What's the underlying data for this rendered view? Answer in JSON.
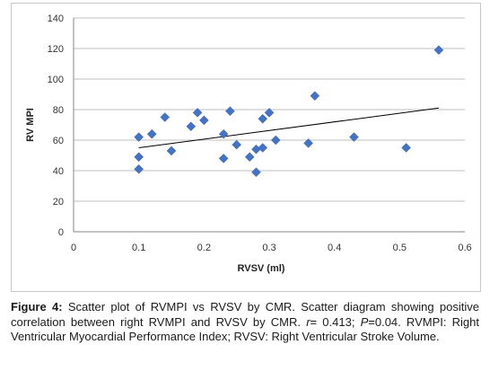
{
  "chart_data": {
    "type": "scatter",
    "title": "",
    "xlabel": "RVSV (ml)",
    "ylabel": "RV MPI",
    "xlim": [
      0,
      0.6
    ],
    "ylim": [
      0,
      140
    ],
    "x_ticks": [
      "0",
      "0.1",
      "0.2",
      "0.3",
      "0.4",
      "0.5",
      "0.6"
    ],
    "y_ticks": [
      "0",
      "20",
      "40",
      "60",
      "80",
      "100",
      "120",
      "140"
    ],
    "grid": "horizontal",
    "marker_color": "#4472c4",
    "trendline_color": "#000000",
    "trendline": {
      "x": [
        0.1,
        0.56
      ],
      "y": [
        55,
        81
      ]
    },
    "points": [
      {
        "x": 0.1,
        "y": 62
      },
      {
        "x": 0.1,
        "y": 49
      },
      {
        "x": 0.1,
        "y": 41
      },
      {
        "x": 0.12,
        "y": 64
      },
      {
        "x": 0.14,
        "y": 75
      },
      {
        "x": 0.15,
        "y": 53
      },
      {
        "x": 0.18,
        "y": 69
      },
      {
        "x": 0.19,
        "y": 78
      },
      {
        "x": 0.2,
        "y": 73
      },
      {
        "x": 0.23,
        "y": 64
      },
      {
        "x": 0.23,
        "y": 48
      },
      {
        "x": 0.24,
        "y": 79
      },
      {
        "x": 0.25,
        "y": 57
      },
      {
        "x": 0.27,
        "y": 49
      },
      {
        "x": 0.28,
        "y": 54
      },
      {
        "x": 0.28,
        "y": 39
      },
      {
        "x": 0.29,
        "y": 74
      },
      {
        "x": 0.29,
        "y": 55
      },
      {
        "x": 0.3,
        "y": 78
      },
      {
        "x": 0.31,
        "y": 60
      },
      {
        "x": 0.36,
        "y": 58
      },
      {
        "x": 0.37,
        "y": 89
      },
      {
        "x": 0.43,
        "y": 62
      },
      {
        "x": 0.51,
        "y": 55
      },
      {
        "x": 0.56,
        "y": 119
      }
    ]
  },
  "caption": {
    "label": "Figure 4:",
    "text1": " Scatter plot of RVMPI vs RVSV by CMR. Scatter diagram showing positive correlation between right RVMPI and RVSV by CMR. ",
    "r_symbol": "r",
    "r_value": "= 0.413; ",
    "p_symbol": "P",
    "text2": "=0.04. RVMPI: Right Ventricular Myocardial Performance Index; RVSV: Right Ventricular Stroke Volume."
  }
}
